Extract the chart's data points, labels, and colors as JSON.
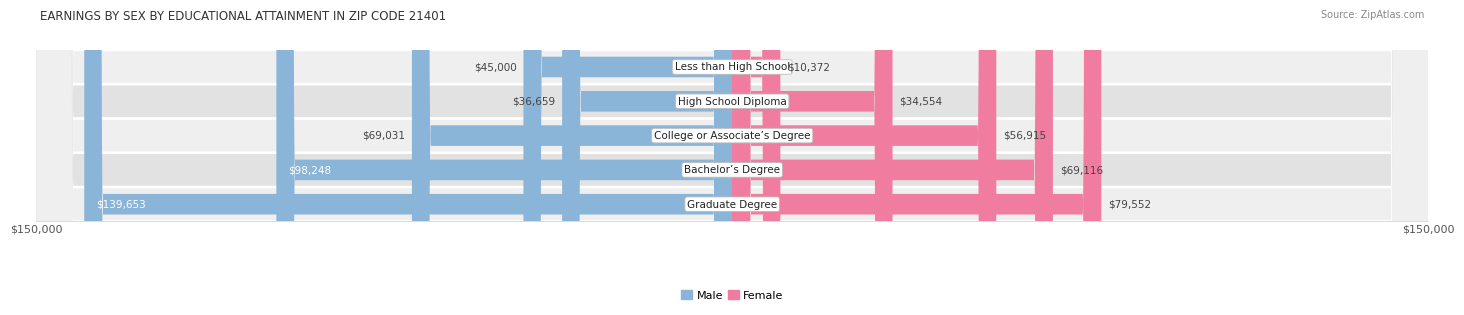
{
  "title": "EARNINGS BY SEX BY EDUCATIONAL ATTAINMENT IN ZIP CODE 21401",
  "source": "Source: ZipAtlas.com",
  "categories": [
    "Less than High School",
    "High School Diploma",
    "College or Associate’s Degree",
    "Bachelor’s Degree",
    "Graduate Degree"
  ],
  "male_values": [
    45000,
    36659,
    69031,
    98248,
    139653
  ],
  "female_values": [
    10372,
    34554,
    56915,
    69116,
    79552
  ],
  "male_color": "#8ab4d8",
  "female_color": "#f07ca0",
  "row_bg_colors": [
    "#efefef",
    "#e2e2e2"
  ],
  "max_value": 150000,
  "xlabel_left": "$150,000",
  "xlabel_right": "$150,000",
  "title_fontsize": 8.5,
  "source_fontsize": 7,
  "label_fontsize": 7.5,
  "value_fontsize": 7.5
}
